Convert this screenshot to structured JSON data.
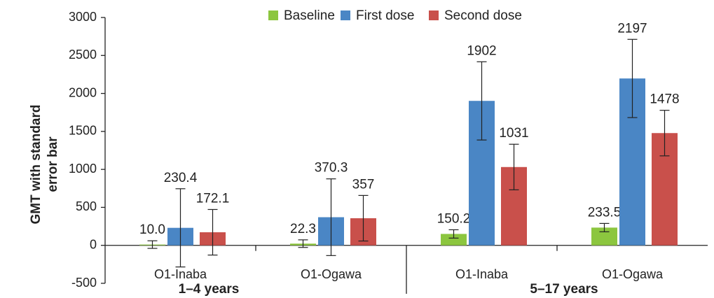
{
  "chart_data": {
    "type": "bar",
    "y_label": [
      "GMT with standard",
      "error bar"
    ],
    "categories": [
      "O1-Inaba",
      "O1-Ogawa",
      "O1-Inaba",
      "O1-Ogawa"
    ],
    "groups": [
      "1–4 years",
      "5–17 years"
    ],
    "series": [
      {
        "name": "Baseline",
        "color": "#8cc63f",
        "values": [
          10.0,
          22.3,
          150.2,
          233.5
        ],
        "value_labels": [
          "10.0",
          "22.3",
          "150.2",
          "233.5"
        ],
        "errors": [
          50,
          50,
          55,
          55
        ]
      },
      {
        "name": "First dose",
        "color": "#4a86c5",
        "values": [
          230.4,
          370.3,
          1902,
          2197
        ],
        "errors": [
          515,
          505,
          515,
          515
        ]
      },
      {
        "name": "Second dose",
        "color": "#c9504b",
        "values": [
          172.1,
          357,
          1031,
          1478
        ],
        "errors": [
          300,
          300,
          300,
          300
        ]
      }
    ],
    "ylim": [
      -500,
      3000
    ],
    "yticks": [
      -500,
      0,
      500,
      1000,
      1500,
      2000,
      2500,
      3000
    ],
    "legend": "top"
  }
}
